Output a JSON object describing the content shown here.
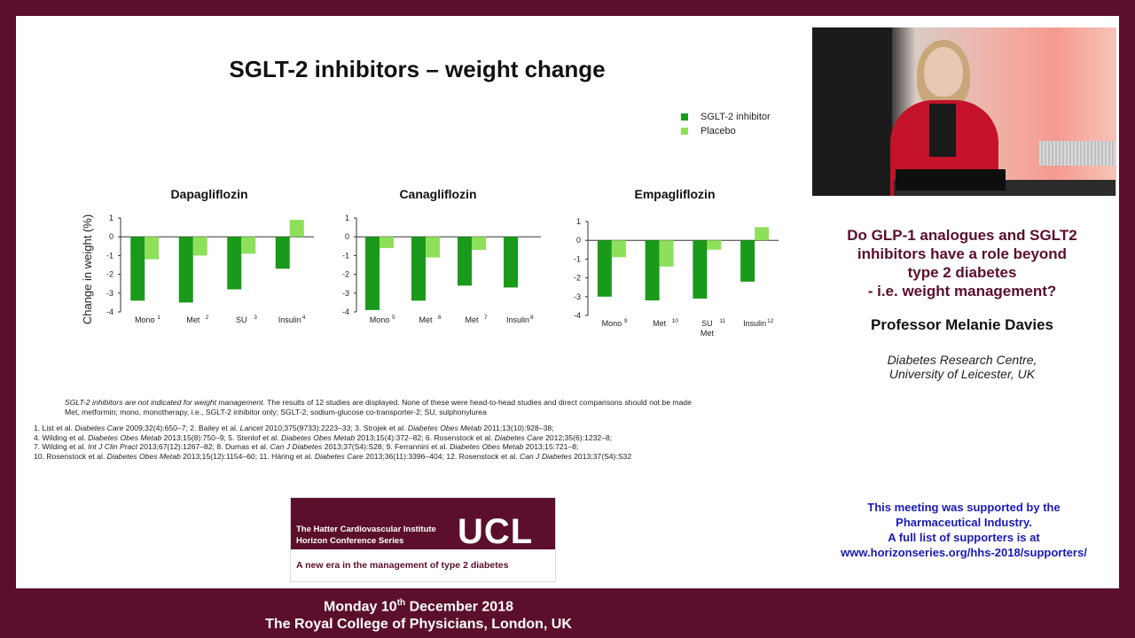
{
  "slide": {
    "title": "SGLT-2 inhibitors – weight change",
    "footnote_italic": "SGLT-2 inhibitors are not indicated for weight management.",
    "footnote_rest": " The results of 12 studies are displayed. None of these were head-to-head studies and direct comparisons should not be made",
    "footnote_line2": "Met, metformin; mono, monotherapy, i.e., SGLT-2 inhibitor only; SGLT-2, sodium-glucose co-transporter-2; SU, sulphonylurea",
    "references": [
      [
        {
          "t": "1. List et al. "
        },
        {
          "t": "Diabetes Care",
          "i": true
        },
        {
          "t": " 2009;32(4):650–7; 2. Bailey et al. "
        },
        {
          "t": "Lancet",
          "i": true
        },
        {
          "t": " 2010;375(9733):2223–33; 3. Strojek et al. "
        },
        {
          "t": "Diabetes Obes Metab",
          "i": true
        },
        {
          "t": " 2011;13(10):928–38;"
        }
      ],
      [
        {
          "t": "4. Wilding et al. "
        },
        {
          "t": "Diabetes Obes Metab",
          "i": true
        },
        {
          "t": " 2013;15(8):750–9; 5. Stenlof et al. "
        },
        {
          "t": "Diabetes Obes Metab",
          "i": true
        },
        {
          "t": " 2013;15(4):372–82; 6. Rosenstock et al. "
        },
        {
          "t": "Diabetes Care",
          "i": true
        },
        {
          "t": " 2012;35(6):1232–8;"
        }
      ],
      [
        {
          "t": "7. Wilding et al. "
        },
        {
          "t": "Int J Clin Pract",
          "i": true
        },
        {
          "t": " 2013;67(12):1267–82; 8. Dumas et al. "
        },
        {
          "t": "Can J Diabetes",
          "i": true
        },
        {
          "t": " 2013;37(S4):S28; 9. Ferrannini et al. "
        },
        {
          "t": "Diabetes Obes Metab",
          "i": true
        },
        {
          "t": " 2013;15:721–8;"
        }
      ],
      [
        {
          "t": "10. Rosenstock et al. "
        },
        {
          "t": "Diabetes Obes Metab",
          "i": true
        },
        {
          "t": " 2013;15(12):1154–60; 11. Häring et al. "
        },
        {
          "t": "Diabetes Care",
          "i": true
        },
        {
          "t": " 2013;36(11):3396–404; 12. Rosenstock et al. "
        },
        {
          "t": "Can J Diabetes",
          "i": true
        },
        {
          "t": " 2013;37(S4):S32"
        }
      ]
    ]
  },
  "chart_data": [
    {
      "type": "bar",
      "title": "Dapagliflozin",
      "ylabel": "Change in weight (%)",
      "ylim": [
        -4,
        1
      ],
      "yticks": [
        1,
        0,
        -1,
        -2,
        -3,
        -4
      ],
      "categories": [
        "Mono",
        "Met",
        "SU",
        "Insulin"
      ],
      "superscripts": [
        "1",
        "2",
        "3",
        "4"
      ],
      "series": [
        {
          "name": "SGLT-2 inhibitor",
          "values": [
            -3.4,
            -3.5,
            -2.8,
            -1.7
          ]
        },
        {
          "name": "Placebo",
          "values": [
            -1.2,
            -1.0,
            -0.9,
            0.9
          ]
        }
      ]
    },
    {
      "type": "bar",
      "title": "Canagliflozin",
      "ylim": [
        -4,
        1
      ],
      "yticks": [
        1,
        0,
        -1,
        -2,
        -3,
        -4
      ],
      "categories": [
        "Mono",
        "Met",
        "Met",
        "Insulin"
      ],
      "superscripts": [
        "5",
        "6",
        "7",
        "8"
      ],
      "series": [
        {
          "name": "SGLT-2 inhibitor",
          "values": [
            -3.9,
            -3.4,
            -2.6,
            -2.7
          ]
        },
        {
          "name": "Placebo",
          "values": [
            -0.6,
            -1.1,
            -0.7,
            0
          ]
        }
      ]
    },
    {
      "type": "bar",
      "title": "Empagliflozin",
      "ylim": [
        -4,
        1
      ],
      "yticks": [
        1,
        0,
        -1,
        -2,
        -3,
        -4
      ],
      "categories": [
        "Mono",
        "Met",
        "SU Met",
        "Insulin"
      ],
      "superscripts": [
        "9",
        "10",
        "11",
        "12"
      ],
      "series": [
        {
          "name": "SGLT-2 inhibitor",
          "values": [
            -3.0,
            -3.2,
            -3.1,
            -2.2
          ]
        },
        {
          "name": "Placebo",
          "values": [
            -0.9,
            -1.4,
            -0.5,
            0.7
          ]
        }
      ]
    }
  ],
  "legend": [
    {
      "label": "SGLT-2 inhibitor",
      "color": "#1a9a1a"
    },
    {
      "label": "Placebo",
      "color": "#8ee05a"
    }
  ],
  "talk": {
    "title_lines": [
      "Do GLP-1 analogues and SGLT2",
      "inhibitors have a role beyond",
      "type 2 diabetes",
      "- i.e. weight management?"
    ],
    "speaker": "Professor Melanie Davies",
    "affiliation_lines": [
      "Diabetes Research Centre,",
      "University of Leicester, UK"
    ]
  },
  "support_lines": [
    "This meeting was supported by the",
    "Pharmaceutical Industry.",
    "A full list of supporters is at",
    "www.horizonseries.org/hhs-2018/supporters/"
  ],
  "banner": {
    "line1": "The Hatter Cardiovascular Institute",
    "line2": "Horizon Conference Series",
    "logo": "UCL",
    "subtitle": "A new era in the management of type 2 diabetes"
  },
  "footer": {
    "date_pre": "Monday 10",
    "date_sup": "th",
    "date_post": " December 2018",
    "venue": "The Royal College of Physicians, London, UK"
  }
}
